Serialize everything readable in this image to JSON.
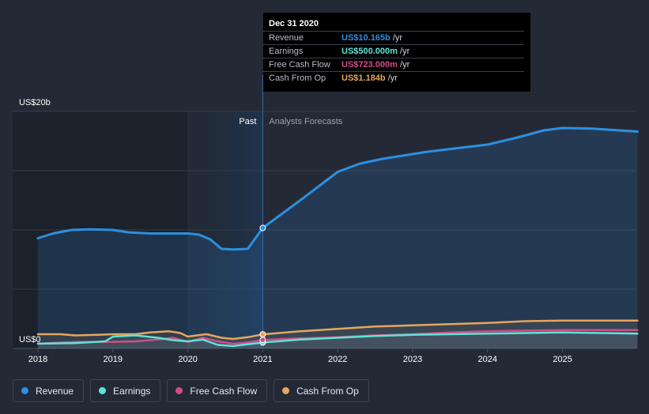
{
  "chart_data": {
    "type": "line",
    "y_axis_top_label": "US$20b",
    "y_axis_zero_label": "US$0",
    "ylim": [
      0,
      20
    ],
    "xlim": [
      2018,
      2026
    ],
    "x_ticks": [
      "2018",
      "2019",
      "2020",
      "2021",
      "2022",
      "2023",
      "2024",
      "2025"
    ],
    "past_label": "Past",
    "forecast_label": "Analysts Forecasts",
    "divider_x": 2021.0,
    "series": [
      {
        "name": "Revenue",
        "color": "#2d8fe0",
        "points": [
          [
            2018.0,
            9.3
          ],
          [
            2018.2,
            9.7
          ],
          [
            2018.45,
            10.0
          ],
          [
            2018.7,
            10.05
          ],
          [
            2019.0,
            10.0
          ],
          [
            2019.2,
            9.8
          ],
          [
            2019.5,
            9.7
          ],
          [
            2019.8,
            9.7
          ],
          [
            2020.0,
            9.7
          ],
          [
            2020.15,
            9.6
          ],
          [
            2020.3,
            9.2
          ],
          [
            2020.45,
            8.4
          ],
          [
            2020.6,
            8.35
          ],
          [
            2020.8,
            8.4
          ],
          [
            2021.0,
            10.165
          ],
          [
            2021.5,
            12.5
          ],
          [
            2022.0,
            14.9
          ],
          [
            2022.3,
            15.6
          ],
          [
            2022.6,
            16.0
          ],
          [
            2022.9,
            16.3
          ],
          [
            2023.2,
            16.6
          ],
          [
            2023.6,
            16.9
          ],
          [
            2024.0,
            17.2
          ],
          [
            2024.4,
            17.8
          ],
          [
            2024.75,
            18.4
          ],
          [
            2025.0,
            18.6
          ],
          [
            2025.4,
            18.55
          ],
          [
            2025.75,
            18.4
          ],
          [
            2026.0,
            18.3
          ]
        ]
      },
      {
        "name": "Earnings",
        "color": "#5ee3d6",
        "points": [
          [
            2018.0,
            0.4
          ],
          [
            2018.5,
            0.45
          ],
          [
            2018.9,
            0.6
          ],
          [
            2019.0,
            1.0
          ],
          [
            2019.3,
            1.1
          ],
          [
            2019.6,
            0.9
          ],
          [
            2019.8,
            0.7
          ],
          [
            2020.0,
            0.6
          ],
          [
            2020.2,
            0.75
          ],
          [
            2020.4,
            0.3
          ],
          [
            2020.6,
            0.2
          ],
          [
            2020.8,
            0.35
          ],
          [
            2021.0,
            0.5
          ],
          [
            2021.5,
            0.75
          ],
          [
            2022.0,
            0.9
          ],
          [
            2022.5,
            1.05
          ],
          [
            2023.0,
            1.15
          ],
          [
            2023.5,
            1.2
          ],
          [
            2024.0,
            1.25
          ],
          [
            2024.5,
            1.3
          ],
          [
            2025.0,
            1.35
          ],
          [
            2025.5,
            1.3
          ],
          [
            2026.0,
            1.25
          ]
        ]
      },
      {
        "name": "Free Cash Flow",
        "color": "#cf4d8a",
        "points": [
          [
            2018.0,
            0.4
          ],
          [
            2018.5,
            0.55
          ],
          [
            2019.0,
            0.55
          ],
          [
            2019.3,
            0.6
          ],
          [
            2019.6,
            0.75
          ],
          [
            2019.8,
            0.9
          ],
          [
            2020.0,
            0.55
          ],
          [
            2020.2,
            0.9
          ],
          [
            2020.4,
            0.6
          ],
          [
            2020.6,
            0.4
          ],
          [
            2020.8,
            0.5
          ],
          [
            2021.0,
            0.723
          ],
          [
            2021.5,
            0.85
          ],
          [
            2022.0,
            0.95
          ],
          [
            2022.5,
            1.1
          ],
          [
            2023.0,
            1.2
          ],
          [
            2023.5,
            1.35
          ],
          [
            2024.0,
            1.45
          ],
          [
            2024.5,
            1.5
          ],
          [
            2025.0,
            1.55
          ],
          [
            2025.5,
            1.55
          ],
          [
            2026.0,
            1.55
          ]
        ]
      },
      {
        "name": "Cash From Op",
        "color": "#e6a65e",
        "points": [
          [
            2018.0,
            1.2
          ],
          [
            2018.3,
            1.2
          ],
          [
            2018.5,
            1.1
          ],
          [
            2018.8,
            1.15
          ],
          [
            2019.0,
            1.2
          ],
          [
            2019.3,
            1.2
          ],
          [
            2019.5,
            1.35
          ],
          [
            2019.75,
            1.45
          ],
          [
            2019.9,
            1.3
          ],
          [
            2020.0,
            1.0
          ],
          [
            2020.25,
            1.2
          ],
          [
            2020.45,
            0.9
          ],
          [
            2020.6,
            0.8
          ],
          [
            2020.8,
            0.95
          ],
          [
            2021.0,
            1.184
          ],
          [
            2021.5,
            1.45
          ],
          [
            2022.0,
            1.65
          ],
          [
            2022.5,
            1.85
          ],
          [
            2023.0,
            1.95
          ],
          [
            2023.5,
            2.05
          ],
          [
            2024.0,
            2.15
          ],
          [
            2024.5,
            2.3
          ],
          [
            2025.0,
            2.35
          ],
          [
            2025.5,
            2.35
          ],
          [
            2026.0,
            2.35
          ]
        ]
      }
    ]
  },
  "tooltip": {
    "title": "Dec 31 2020",
    "rows": [
      {
        "label": "Revenue",
        "value": "US$10.165b",
        "unit": "/yr",
        "color": "#2d8fe0"
      },
      {
        "label": "Earnings",
        "value": "US$500.000m",
        "unit": "/yr",
        "color": "#5ee3d6"
      },
      {
        "label": "Free Cash Flow",
        "value": "US$723.000m",
        "unit": "/yr",
        "color": "#cf4d8a"
      },
      {
        "label": "Cash From Op",
        "value": "US$1.184b",
        "unit": "/yr",
        "color": "#e6a65e"
      }
    ]
  },
  "legend": [
    {
      "label": "Revenue",
      "color": "#2d8fe0"
    },
    {
      "label": "Earnings",
      "color": "#5ee3d6"
    },
    {
      "label": "Free Cash Flow",
      "color": "#cf4d8a"
    },
    {
      "label": "Cash From Op",
      "color": "#e6a65e"
    }
  ]
}
